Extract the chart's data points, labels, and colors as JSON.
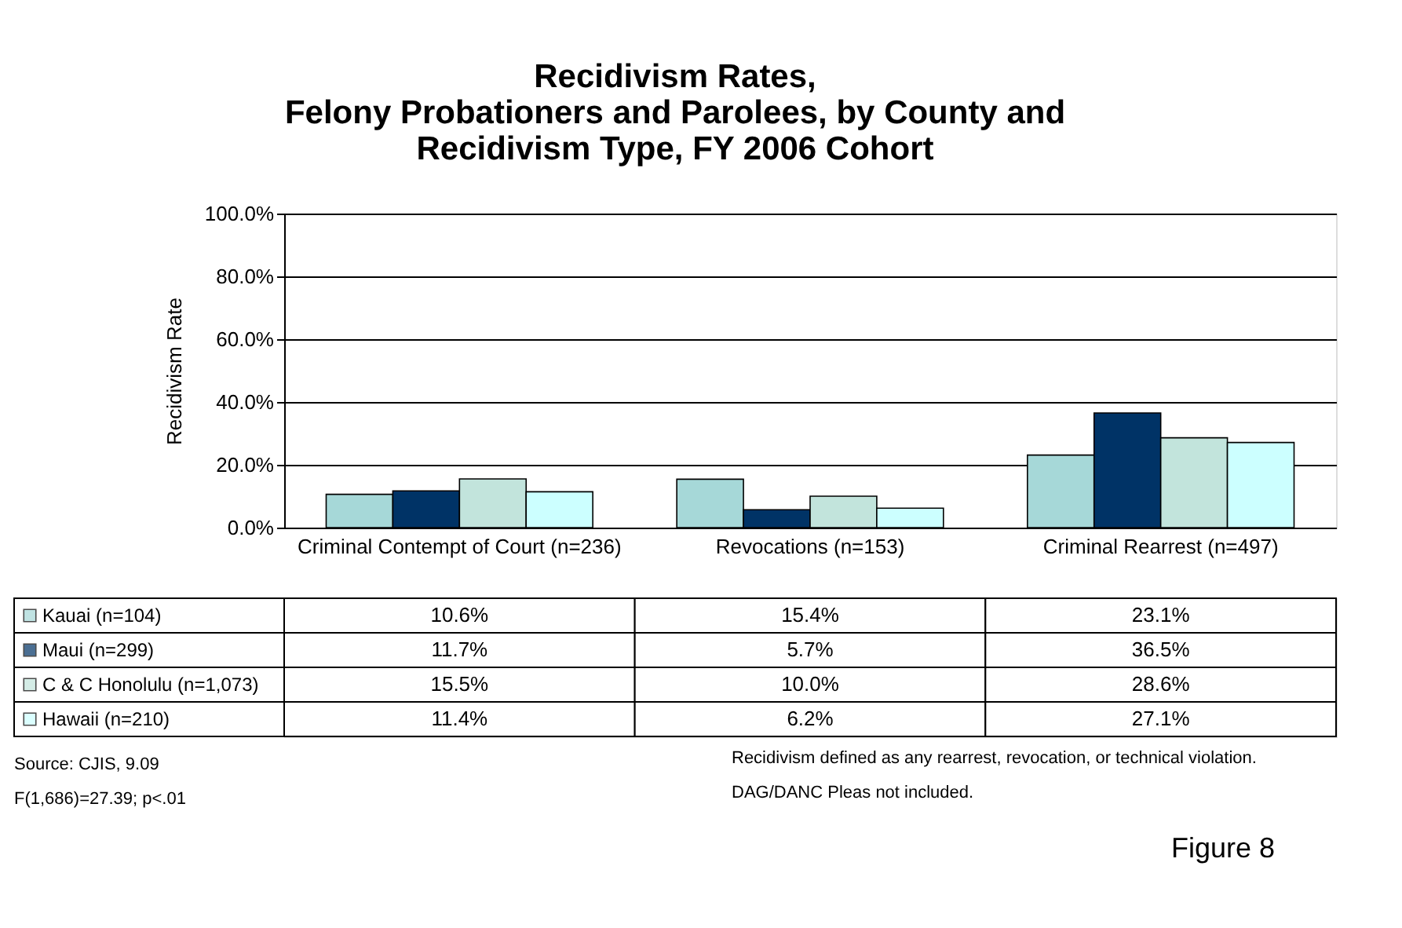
{
  "chart_data": {
    "type": "bar",
    "title": "Recidivism Rates,\nFelony Probationers and Parolees, by County and\nRecidivism Type, FY 2006 Cohort",
    "ylabel": "Recidivism Rate",
    "categories": [
      "Criminal Contempt of Court (n=236)",
      "Revocations (n=153)",
      "Criminal Rearrest (n=497)"
    ],
    "series": [
      {
        "name": "Kauai (n=104)",
        "color": "#a6d8d8",
        "values": [
          10.6,
          15.4,
          23.1
        ],
        "value_labels": [
          "10.6%",
          "15.4%",
          "23.1%"
        ]
      },
      {
        "name": "Maui (n=299)",
        "color": "#003366",
        "values": [
          11.7,
          5.7,
          36.5
        ],
        "value_labels": [
          "11.7%",
          "5.7%",
          "36.5%"
        ]
      },
      {
        "name": "C & C Honolulu (n=1,073)",
        "color": "#c2e4dc",
        "values": [
          15.5,
          10.0,
          28.6
        ],
        "value_labels": [
          "15.5%",
          "10.0%",
          "28.6%"
        ]
      },
      {
        "name": "Hawaii (n=210)",
        "color": "#ccffff",
        "values": [
          11.4,
          6.2,
          27.1
        ],
        "value_labels": [
          "11.4%",
          "6.2%",
          "27.1%"
        ]
      }
    ],
    "ylim": [
      0,
      100
    ],
    "yticks": [
      {
        "value": 0,
        "label": "0.0%"
      },
      {
        "value": 20,
        "label": "20.0%"
      },
      {
        "value": 40,
        "label": "40.0%"
      },
      {
        "value": 60,
        "label": "60.0%"
      },
      {
        "value": 80,
        "label": "80.0%"
      },
      {
        "value": 100,
        "label": "100.0%"
      }
    ],
    "grid": "y",
    "legend": "bottom",
    "annotations": [
      "Source: CJIS, 9.09",
      "F(1,686)=27.39; p<.01",
      "Recidivism defined as any rearrest, revocation, or technical violation.",
      "DAG/DANC Pleas not included.",
      "Figure 8"
    ]
  }
}
